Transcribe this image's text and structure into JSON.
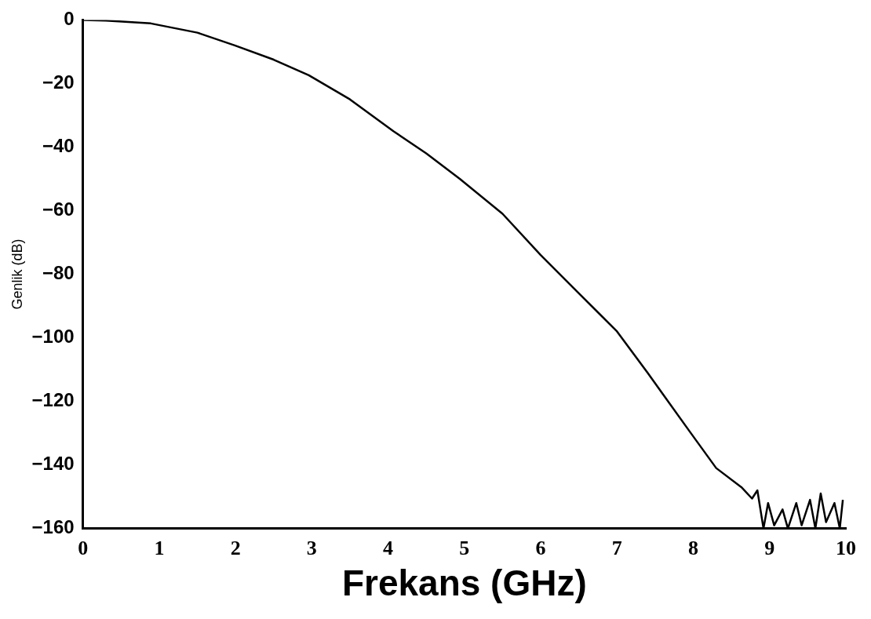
{
  "chart_data": {
    "type": "line",
    "xlabel": "Frekans (GHz)",
    "ylabel": "Genlik (dB)",
    "x": [
      0,
      0.3,
      0.89,
      1.5,
      1.99,
      2.5,
      2.96,
      3.5,
      4.07,
      4.5,
      4.94,
      5.5,
      6.0,
      6.5,
      7.0,
      7.4,
      7.95,
      8.3,
      8.63,
      8.77,
      8.84,
      8.92,
      8.98,
      9.06,
      9.17,
      9.24,
      9.35,
      9.42,
      9.53,
      9.6,
      9.67,
      9.74,
      9.85,
      9.92,
      9.96
    ],
    "series": [
      {
        "color": "#000000",
        "values": [
          0,
          -0.2,
          -1.1,
          -4,
          -8,
          -12.5,
          -17.4,
          -25,
          -35,
          -42,
          -50,
          -61,
          -74,
          -86,
          -98,
          -111,
          -129.4,
          -141,
          -147,
          -150.6,
          -148,
          -160,
          -152,
          -159,
          -154,
          -160,
          -152,
          -159,
          -151,
          -160,
          -149,
          -158,
          -152,
          -160,
          -151
        ]
      }
    ],
    "xlim": [
      0,
      10
    ],
    "xticks": [
      0,
      1,
      2,
      3,
      4,
      5,
      6,
      7,
      8,
      9,
      10
    ],
    "ylim": [
      -160,
      0
    ],
    "yticks": [
      -160,
      -140,
      -120,
      -100,
      -80,
      -60,
      -40,
      -20,
      0
    ],
    "grid": false,
    "legend": false,
    "marker": "none",
    "line_style": "solid"
  }
}
